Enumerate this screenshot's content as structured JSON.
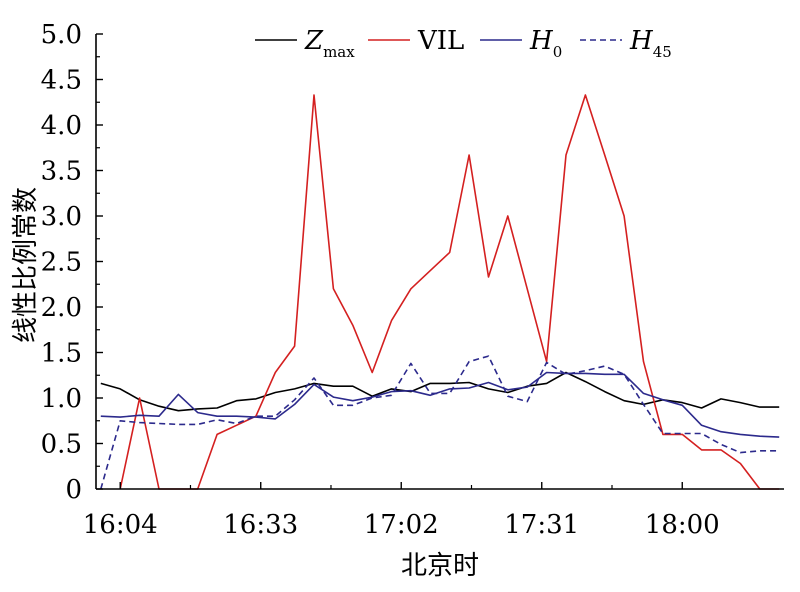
{
  "chart_data": {
    "type": "line",
    "xlabel": "北京时",
    "ylabel": "线性比例常数",
    "ylim": [
      0,
      5.0
    ],
    "yticks": [
      0,
      0.5,
      1.0,
      1.5,
      2.0,
      2.5,
      3.0,
      3.5,
      4.0,
      4.5,
      5.0
    ],
    "ytick_labels": [
      "0",
      "0.5",
      "1.0",
      "1.5",
      "2.0",
      "2.5",
      "3.0",
      "3.5",
      "4.0",
      "4.5",
      "5.0"
    ],
    "x_unit": "minutes since 16:04",
    "xlim": [
      -5,
      137
    ],
    "xticks": [
      0,
      29,
      58,
      87,
      116
    ],
    "xtick_labels": [
      "16:04",
      "16:33",
      "17:02",
      "17:31",
      "18:00"
    ],
    "grid": false,
    "legend_position": "top",
    "series": [
      {
        "name": "Z",
        "name_sub": "max",
        "name_italic": true,
        "color": "#000000",
        "dash": "solid",
        "x": [
          -4,
          0,
          4,
          8,
          12,
          16,
          20,
          24,
          28,
          32,
          36,
          40,
          44,
          48,
          52,
          56,
          60,
          64,
          68,
          72,
          76,
          80,
          84,
          88,
          92,
          96,
          100,
          104,
          108,
          112,
          116,
          120,
          124,
          128,
          132,
          136
        ],
        "values": [
          1.16,
          1.1,
          0.98,
          0.91,
          0.86,
          0.88,
          0.89,
          0.97,
          0.99,
          1.06,
          1.1,
          1.16,
          1.13,
          1.13,
          1.02,
          1.1,
          1.07,
          1.16,
          1.16,
          1.17,
          1.1,
          1.06,
          1.13,
          1.16,
          1.28,
          1.18,
          1.07,
          0.97,
          0.93,
          0.98,
          0.95,
          0.89,
          0.99,
          0.95,
          0.9,
          0.9
        ]
      },
      {
        "name": "VIL",
        "name_sub": "",
        "name_italic": false,
        "color": "#d42020",
        "dash": "solid",
        "x": [
          0,
          4,
          8,
          12,
          16,
          20,
          24,
          28,
          32,
          36,
          40,
          44,
          48,
          52,
          56,
          60,
          64,
          68,
          72,
          76,
          80,
          84,
          88,
          92,
          96,
          100,
          104,
          108,
          112,
          116,
          120,
          124,
          128,
          132,
          136
        ],
        "values": [
          0,
          1.0,
          0,
          0,
          0,
          0.6,
          0.7,
          0.8,
          1.28,
          1.57,
          4.33,
          2.2,
          1.8,
          1.28,
          1.85,
          2.2,
          2.4,
          2.6,
          3.67,
          2.33,
          3.0,
          2.2,
          1.4,
          3.67,
          4.33,
          3.67,
          3.0,
          1.4,
          0.6,
          0.6,
          0.43,
          0.43,
          0.28,
          0,
          0
        ]
      },
      {
        "name": "H",
        "name_sub": "0",
        "name_italic": true,
        "color": "#2c2a8c",
        "dash": "solid",
        "x": [
          -4,
          0,
          4,
          8,
          12,
          16,
          20,
          24,
          28,
          32,
          36,
          40,
          44,
          48,
          52,
          56,
          60,
          64,
          68,
          72,
          76,
          80,
          84,
          88,
          92,
          96,
          100,
          104,
          108,
          112,
          116,
          120,
          124,
          128,
          132,
          136
        ],
        "values": [
          0.8,
          0.79,
          0.81,
          0.8,
          1.04,
          0.84,
          0.8,
          0.8,
          0.79,
          0.77,
          0.93,
          1.15,
          1.01,
          0.97,
          1.01,
          1.07,
          1.08,
          1.03,
          1.1,
          1.11,
          1.17,
          1.09,
          1.12,
          1.28,
          1.27,
          1.27,
          1.26,
          1.26,
          1.05,
          0.98,
          0.92,
          0.7,
          0.63,
          0.6,
          0.58,
          0.57
        ]
      },
      {
        "name": "H",
        "name_sub": "45",
        "name_italic": true,
        "color": "#2c2a8c",
        "dash": "dashed",
        "x": [
          -4,
          0,
          4,
          8,
          12,
          16,
          20,
          24,
          28,
          32,
          36,
          40,
          44,
          48,
          52,
          56,
          60,
          64,
          68,
          72,
          76,
          80,
          84,
          88,
          92,
          96,
          100,
          104,
          108,
          112,
          116,
          120,
          124,
          128,
          132,
          136
        ],
        "values": [
          0,
          0.75,
          0.73,
          0.72,
          0.71,
          0.71,
          0.76,
          0.72,
          0.8,
          0.8,
          0.98,
          1.22,
          0.92,
          0.92,
          1.0,
          1.03,
          1.38,
          1.05,
          1.05,
          1.4,
          1.46,
          1.02,
          0.96,
          1.39,
          1.26,
          1.3,
          1.35,
          1.26,
          0.93,
          0.61,
          0.61,
          0.61,
          0.49,
          0.4,
          0.42,
          0.42
        ]
      }
    ]
  }
}
